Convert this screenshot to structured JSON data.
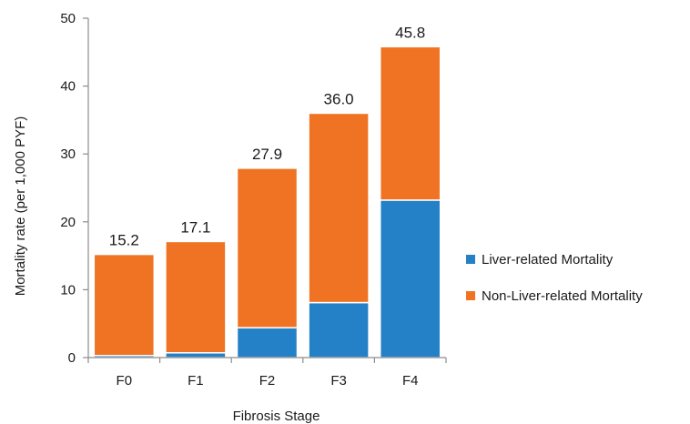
{
  "chart_data": {
    "type": "bar",
    "stacked": true,
    "title": "",
    "xlabel": "Fibrosis Stage",
    "ylabel": "Mortality rate (per 1,000 PYF)",
    "ylim": [
      0,
      50
    ],
    "yticks": [
      "0",
      "10",
      "20",
      "30",
      "40",
      "50"
    ],
    "categories": [
      "F0",
      "F1",
      "F2",
      "F3",
      "F4"
    ],
    "series": [
      {
        "name": "Liver-related Mortality",
        "color": "#2481c7",
        "values": [
          0.3,
          0.7,
          4.4,
          8.1,
          23.2
        ]
      },
      {
        "name": "Non-Liver-related Mortality",
        "color": "#f07323",
        "values": [
          14.9,
          16.4,
          23.5,
          27.9,
          22.6
        ]
      }
    ],
    "totals": [
      "15.2",
      "17.1",
      "27.9",
      "36.0",
      "45.8"
    ],
    "legend_position": "right",
    "grid": false
  }
}
